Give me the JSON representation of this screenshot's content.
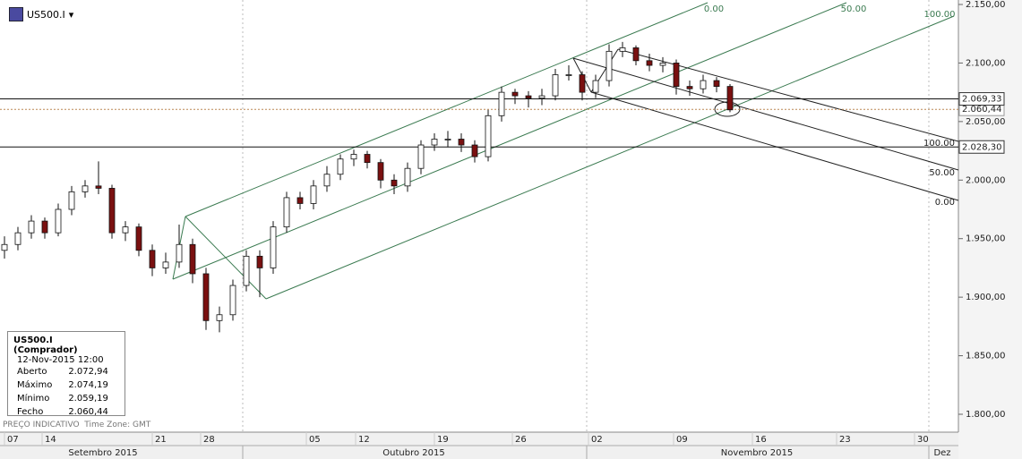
{
  "header": {
    "symbol": "US500.I"
  },
  "info_box": {
    "title": "US500.I (Comprador)",
    "date": "12-Nov-2015 12:00",
    "rows": [
      [
        "Aberto",
        "2.072,94"
      ],
      [
        "Máximo",
        "2.074,19"
      ],
      [
        "Mínimo",
        "2.059,19"
      ],
      [
        "Fecho",
        "2.060,44"
      ]
    ]
  },
  "footer": {
    "note": "PREÇO INDICATIVO",
    "timezone": "Time Zone: GMT"
  },
  "chart_data": {
    "type": "candlestick",
    "ylim": [
      1800,
      2150
    ],
    "yticks": [
      {
        "value": 1800,
        "label": "1.800,00"
      },
      {
        "value": 1850,
        "label": "1.850,00"
      },
      {
        "value": 1900,
        "label": "1.900,00"
      },
      {
        "value": 1950,
        "label": "1.950,00"
      },
      {
        "value": 2000,
        "label": "2.000,00"
      },
      {
        "value": 2050,
        "label": "2.050,00"
      },
      {
        "value": 2100,
        "label": "2.100,00"
      },
      {
        "value": 2150,
        "label": "2.150,00"
      }
    ],
    "xlabels": [
      "07",
      "14",
      "21",
      "28",
      "05",
      "12",
      "19",
      "26",
      "02",
      "09",
      "16",
      "23",
      "30"
    ],
    "months": [
      "Setembro 2015",
      "Outubro 2015",
      "Novembro 2015",
      "Dez"
    ],
    "up_color": "#ffffff",
    "down_color": "#7a1010",
    "open": [
      1940,
      1945,
      1955,
      1965,
      1955,
      1975,
      1990,
      1995,
      1993,
      1955,
      1960,
      1940,
      1925,
      1930,
      1945,
      1920,
      1880,
      1885,
      1910,
      1935,
      1925,
      1960,
      1985,
      1980,
      1995,
      2005,
      2018,
      2022,
      2015,
      2000,
      1995,
      2010,
      2030,
      2035,
      2035,
      2030,
      2020,
      2055,
      2075,
      2072,
      2070,
      2072,
      2090,
      2090,
      2075,
      2085,
      2110,
      2113,
      2102,
      2098,
      2100,
      2080,
      2078,
      2085,
      2080
    ],
    "high": [
      1952,
      1960,
      1970,
      1968,
      1980,
      1995,
      2000,
      2016,
      1996,
      1965,
      1963,
      1945,
      1938,
      1962,
      1950,
      1925,
      1892,
      1915,
      1940,
      1940,
      1965,
      1990,
      1990,
      2000,
      2012,
      2022,
      2026,
      2025,
      2018,
      2005,
      2015,
      2034,
      2040,
      2042,
      2040,
      2034,
      2060,
      2080,
      2078,
      2076,
      2078,
      2095,
      2098,
      2093,
      2090,
      2116,
      2118,
      2115,
      2108,
      2105,
      2103,
      2085,
      2090,
      2088,
      2082
    ],
    "low": [
      1933,
      1940,
      1950,
      1950,
      1952,
      1970,
      1985,
      1988,
      1950,
      1948,
      1935,
      1918,
      1920,
      1925,
      1912,
      1872,
      1870,
      1880,
      1905,
      1900,
      1920,
      1955,
      1975,
      1975,
      1990,
      2000,
      2012,
      2010,
      1993,
      1988,
      1990,
      2005,
      2025,
      2028,
      2024,
      2015,
      2016,
      2050,
      2065,
      2062,
      2064,
      2068,
      2085,
      2068,
      2070,
      2080,
      2105,
      2098,
      2093,
      2092,
      2073,
      2072,
      2074,
      2075,
      2058
    ],
    "close": [
      1945,
      1955,
      1965,
      1955,
      1975,
      1990,
      1995,
      1993,
      1955,
      1960,
      1940,
      1925,
      1930,
      1945,
      1920,
      1880,
      1885,
      1910,
      1935,
      1925,
      1960,
      1985,
      1980,
      1995,
      2005,
      2018,
      2022,
      2015,
      2000,
      1995,
      2010,
      2030,
      2035,
      2035,
      2030,
      2020,
      2055,
      2075,
      2072,
      2070,
      2072,
      2090,
      2090,
      2075,
      2085,
      2110,
      2113,
      2102,
      2098,
      2100,
      2080,
      2078,
      2085,
      2080,
      2060
    ],
    "hlines": {
      "values": [
        2069.33,
        2028.3
      ],
      "value_labels": [
        "2.069,33",
        "2.028,30"
      ]
    },
    "last_price": {
      "value": 2060.44,
      "label": "2.060,44"
    },
    "green_labels": [
      "0.00",
      "50.00",
      "100.00"
    ],
    "black_labels": [
      "100.00",
      "50.00",
      "0.00"
    ]
  }
}
